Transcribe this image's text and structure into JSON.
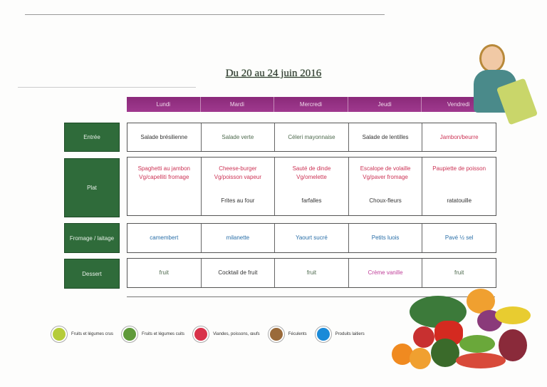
{
  "title": "Du 20 au 24 juin 2016",
  "days": [
    "Lundi",
    "Mardi",
    "Mercredi",
    "Jeudi",
    "Vendredi"
  ],
  "categories": {
    "entree": "Entrée",
    "plat": "Plat",
    "fromage": "Fromage / laitage",
    "dessert": "Dessert"
  },
  "entree": [
    "Salade brésilienne",
    "Salade verte",
    "Céleri mayonnaise",
    "Salade de lentilles",
    "Jambon/beurre"
  ],
  "plat_main": [
    "Spaghetti au jambon\nVg/capelliti fromage",
    "Cheese-burger\nVg/poisson vapeur",
    "Sauté de dinde\nVg/omelette",
    "Escalope de volaille\nVg/paver fromage",
    "Paupiette de poisson"
  ],
  "plat_side": [
    "",
    "Frites au four",
    "farfalles",
    "Choux-fleurs",
    "ratatouille"
  ],
  "fromage": [
    "camembert",
    "milanette",
    "Yaourt sucré",
    "Petits luois",
    "Pavé ½ sel"
  ],
  "dessert": [
    "fruit",
    "Cocktail de fruit",
    "fruit",
    "Crème vanille",
    "fruit"
  ],
  "legend": [
    {
      "label": "Fruits et légumes crus",
      "color": "#b5cc3a"
    },
    {
      "label": "Fruits et légumes cuits",
      "color": "#5f9a3a"
    },
    {
      "label": "Viandes, poissons, œufs",
      "color": "#d8324a"
    },
    {
      "label": "Féculents",
      "color": "#9a6a3a"
    },
    {
      "label": "Produits laitiers",
      "color": "#1a8ad8"
    }
  ]
}
